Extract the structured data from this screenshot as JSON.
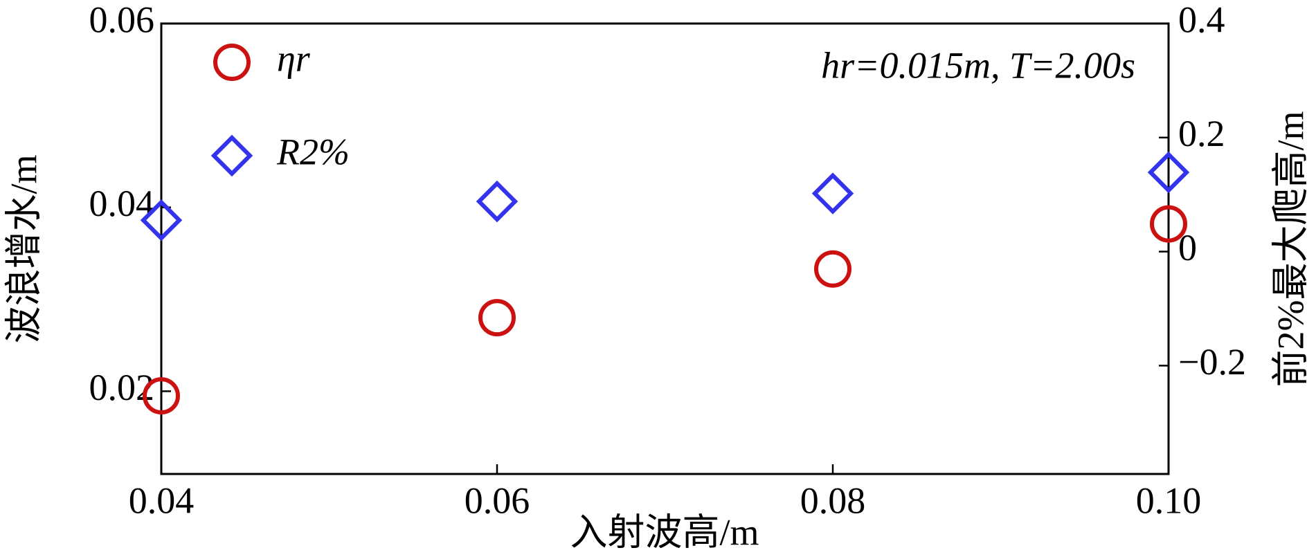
{
  "chart_data": {
    "type": "scatter",
    "xlabel": "入射波高/m",
    "ylabel": "波浪增水/m",
    "y2label": "前2%最大爬高/m",
    "annotation": "hr=0.015m, T=2.00s",
    "x": [
      0.04,
      0.06,
      0.08,
      0.1
    ],
    "series": [
      {
        "name": "ηr",
        "color": "#cc1111",
        "marker": "circle",
        "values": [
          0.0195,
          0.028,
          0.0333,
          0.0382
        ]
      },
      {
        "name": "R2%",
        "color": "#3333ee",
        "marker": "diamond",
        "axis": "y2",
        "values": [
          0.055,
          0.088,
          0.102,
          0.139
        ]
      }
    ],
    "xlim": [
      0.04,
      0.1
    ],
    "xticks": [
      0.04,
      0.06,
      0.08,
      {
        "value": 0.1,
        "label": "0.10"
      }
    ],
    "ylim": [
      0.011,
      0.06
    ],
    "yticks": [
      0.02,
      0.04,
      0.06
    ],
    "y2lim": [
      -0.39,
      0.4
    ],
    "y2ticks": [
      {
        "value": -0.2,
        "label": "−0.2"
      },
      0,
      0.2,
      0.4
    ],
    "grid": false,
    "legend": "upper left"
  }
}
